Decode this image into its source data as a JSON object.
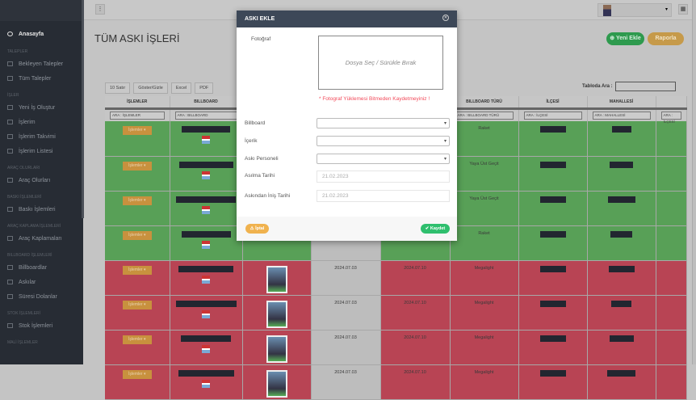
{
  "sidebar": {
    "home": "Anasayfa",
    "sections": [
      {
        "title": "TALEPLER",
        "items": [
          "Bekleyen Talepler",
          "Tüm Talepler"
        ]
      },
      {
        "title": "İŞLER",
        "items": [
          "Yeni İş Oluştur",
          "İşlerim",
          "İşlerim Takvimi",
          "İşlerim Listesi"
        ]
      },
      {
        "title": "ARAÇ OLURLARI",
        "items": [
          "Araç Olurları"
        ]
      },
      {
        "title": "BASKI İŞLEMLERİ",
        "items": [
          "Baskı İşlemleri"
        ]
      },
      {
        "title": "ARAÇ KAPLAMA İŞLEMLERİ",
        "items": [
          "Araç Kaplamaları"
        ]
      },
      {
        "title": "BILLBOARD İŞLEMLERİ",
        "items": [
          "Billboardlar",
          "Askılar",
          "Süresi Dolanlar"
        ]
      },
      {
        "title": "STOK İŞLEMLERİ",
        "items": [
          "Stok İşlemleri"
        ]
      },
      {
        "title": "MALİ İŞLEMLER",
        "items": []
      }
    ]
  },
  "header": {
    "menu_icon": "⋮",
    "grid_icon": "▦",
    "user_caret": "▾"
  },
  "page": {
    "title": "TÜM ASKI İŞLERİ",
    "new_button": "⊕ Yeni Ekle",
    "report_button": "Raporla",
    "tools": [
      "10 Satır",
      "Göster/Gizle",
      "Excel",
      "PDF"
    ],
    "search_label": "Tabloda Ara :"
  },
  "table": {
    "headers": [
      "İŞLEMLER",
      "BILLBOARD",
      "",
      "",
      "",
      "BILLBOARD TÜRÜ",
      "İLÇESİ",
      "MAHALLESİ",
      ""
    ],
    "filters": [
      "ARA : İŞLEMLER",
      "ARA : BILLBOARD",
      "",
      "",
      "",
      "ARA : BILLBOARD TÜRÜ",
      "ARA : İLÇESİ",
      "ARA : MAHALLESİ",
      "ARA : İLÇESİ"
    ],
    "ops_label": "İşlemler ▾",
    "rows": [
      {
        "status": "green",
        "start": "",
        "end": "",
        "type": "Raket"
      },
      {
        "status": "green",
        "start": "",
        "end": "",
        "type": "Yaya Üst Geçit"
      },
      {
        "status": "green",
        "start": "",
        "end": "",
        "type": "Yaya Üst Geçit"
      },
      {
        "status": "green",
        "start": "",
        "end": "",
        "type": "Raket"
      },
      {
        "status": "red",
        "start": "2024.07.03",
        "end": "2024.07.10",
        "type": "Megalight"
      },
      {
        "status": "red",
        "start": "2024.07.03",
        "end": "2024.07.10",
        "type": "Megalight"
      },
      {
        "status": "red",
        "start": "2024.07.03",
        "end": "2024.07.10",
        "type": "Megalight"
      },
      {
        "status": "red",
        "start": "2024.07.03",
        "end": "2024.07.10",
        "type": "Megalight"
      }
    ]
  },
  "modal": {
    "title": "ASKI EKLE",
    "close_icon": "✕",
    "photo_label": "Fotoğraf",
    "dropzone": "Dosya Seç / Sürükle Bırak",
    "warning": "* Fotograf Yüklemesi Bitmeden Kaydetmeyiniz !",
    "billboard_label": "Billboard",
    "content_label": "İçerik",
    "staff_label": "Askı Personeli",
    "hang_date_label": "Asılma Tarihi",
    "hang_date": "21.02.2023",
    "remove_date_label": "Askından İniş Tarihi",
    "remove_date": "21.02.2023",
    "cancel": "⚠ İptal",
    "save": "✔ Kaydet"
  },
  "colors": {
    "green_row": "#58a057",
    "red_row": "#b84454",
    "modal_header": "#3d4858",
    "save": "#2fbf6e",
    "cancel": "#f0b24e"
  }
}
